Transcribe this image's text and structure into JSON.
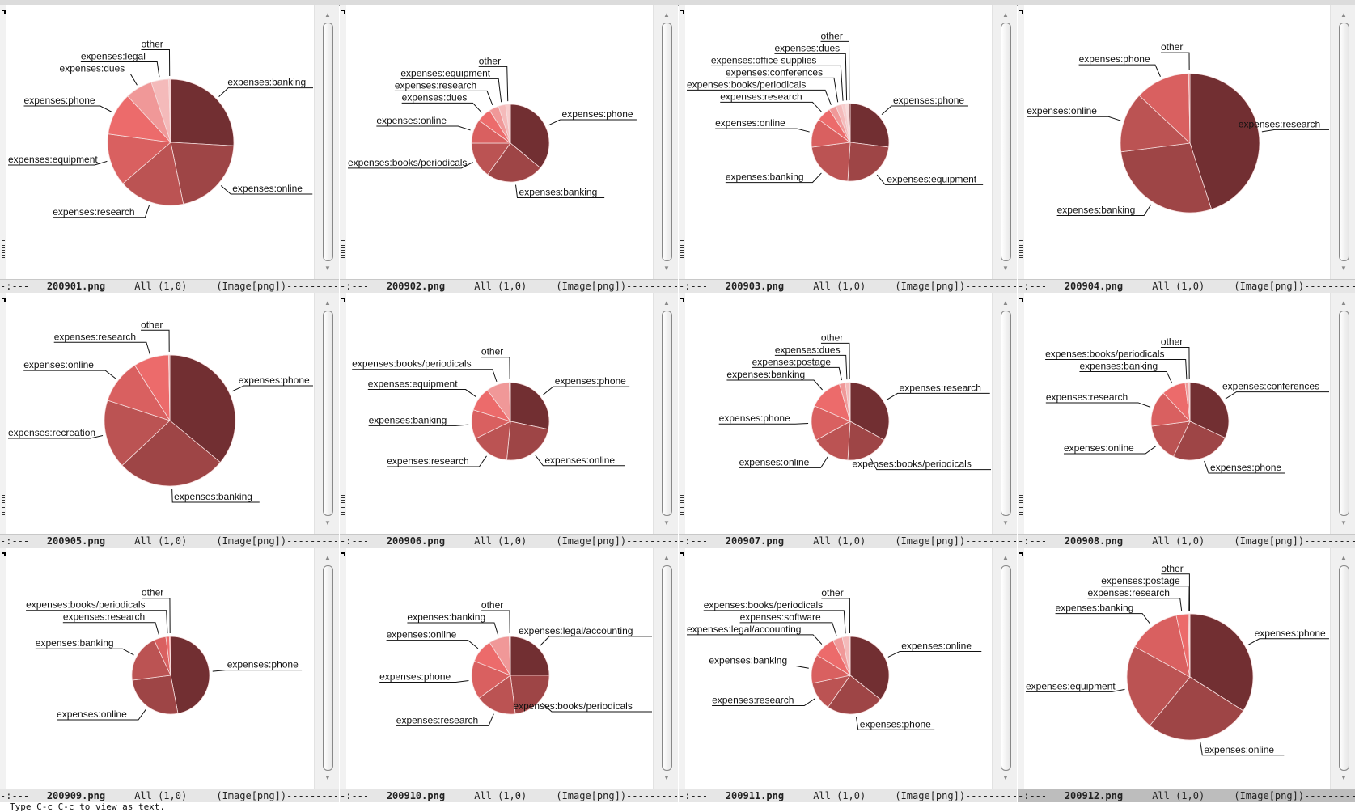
{
  "echo_area": "Type C-c C-c to view as text.",
  "colors": {
    "slices": [
      "#722f32",
      "#9e4546",
      "#bb5353",
      "#d96060",
      "#ec6b6b",
      "#f09898",
      "#f4baba",
      "#f7cccc",
      "#f9dada"
    ],
    "modeline": "#e6e6e6",
    "modeline_active": "#bdbdbd"
  },
  "windows": [
    {
      "buffer": "200901.png",
      "status": "-:---",
      "position": "All (1,0)",
      "mode": "(Image[png])",
      "active": false
    },
    {
      "buffer": "200902.png",
      "status": "-:---",
      "position": "All (1,0)",
      "mode": "(Image[png])",
      "active": false
    },
    {
      "buffer": "200903.png",
      "status": "-:---",
      "position": "All (1,0)",
      "mode": "(Image[png])",
      "active": false
    },
    {
      "buffer": "200904.png",
      "status": "-:---",
      "position": "All (1,0)",
      "mode": "(Image[png])",
      "active": false
    },
    {
      "buffer": "200905.png",
      "status": "-:---",
      "position": "All (1,0)",
      "mode": "(Image[png])",
      "active": false
    },
    {
      "buffer": "200906.png",
      "status": "-:---",
      "position": "All (1,0)",
      "mode": "(Image[png])",
      "active": false
    },
    {
      "buffer": "200907.png",
      "status": "-:---",
      "position": "All (1,0)",
      "mode": "(Image[png])",
      "active": false
    },
    {
      "buffer": "200908.png",
      "status": "-:---",
      "position": "All (1,0)",
      "mode": "(Image[png])",
      "active": false
    },
    {
      "buffer": "200909.png",
      "status": "-:---",
      "position": "All (1,0)",
      "mode": "(Image[png])",
      "active": false
    },
    {
      "buffer": "200910.png",
      "status": "-:---",
      "position": "All (1,0)",
      "mode": "(Image[png])",
      "active": false
    },
    {
      "buffer": "200911.png",
      "status": "-:---",
      "position": "All (1,0)",
      "mode": "(Image[png])",
      "active": false
    },
    {
      "buffer": "200912.png",
      "status": "-:---",
      "position": "All (1,0)",
      "mode": "(Image[png])",
      "active": true
    }
  ],
  "chart_data": [
    {
      "type": "pie",
      "slices": [
        [
          "expenses:banking",
          26
        ],
        [
          "expenses:online",
          21
        ],
        [
          "expenses:research",
          17
        ],
        [
          "expenses:equipment",
          13.5
        ],
        [
          "expenses:phone",
          11
        ],
        [
          "expenses:dues",
          7
        ],
        [
          "expenses:legal",
          4.5
        ],
        [
          "other",
          0.5
        ]
      ]
    },
    {
      "type": "pie",
      "slices": [
        [
          "expenses:phone",
          36
        ],
        [
          "expenses:banking",
          24
        ],
        [
          "expenses:books/periodicals",
          15
        ],
        [
          "expenses:online",
          10
        ],
        [
          "expenses:dues",
          6
        ],
        [
          "expenses:research",
          4
        ],
        [
          "expenses:equipment",
          3
        ],
        [
          "other",
          2
        ]
      ]
    },
    {
      "type": "pie",
      "slices": [
        [
          "expenses:phone",
          27
        ],
        [
          "expenses:equipment",
          24
        ],
        [
          "expenses:banking",
          22
        ],
        [
          "expenses:online",
          12
        ],
        [
          "expenses:research",
          6
        ],
        [
          "expenses:books/periodicals",
          3
        ],
        [
          "expenses:conferences",
          2.5
        ],
        [
          "expenses:office supplies",
          1.5
        ],
        [
          "expenses:dues",
          1.3
        ],
        [
          "other",
          0.7
        ]
      ]
    },
    {
      "type": "pie",
      "slices": [
        [
          "expenses:research",
          45
        ],
        [
          "expenses:banking",
          28
        ],
        [
          "expenses:online",
          14
        ],
        [
          "expenses:phone",
          12.7
        ],
        [
          "other",
          0.3
        ]
      ]
    },
    {
      "type": "pie",
      "slices": [
        [
          "expenses:phone",
          36
        ],
        [
          "expenses:banking",
          27
        ],
        [
          "expenses:recreation",
          17
        ],
        [
          "expenses:online",
          11
        ],
        [
          "expenses:research",
          8.7
        ],
        [
          "other",
          0.3
        ]
      ]
    },
    {
      "type": "pie",
      "slices": [
        [
          "expenses:phone",
          28
        ],
        [
          "expenses:online",
          23
        ],
        [
          "expenses:research",
          16
        ],
        [
          "expenses:banking",
          12
        ],
        [
          "expenses:equipment",
          10
        ],
        [
          "expenses:books/periodicals",
          9.5
        ],
        [
          "other",
          0.5
        ]
      ]
    },
    {
      "type": "pie",
      "slices": [
        [
          "expenses:research",
          33
        ],
        [
          "expenses:books/periodicals",
          18
        ],
        [
          "expenses:online",
          16
        ],
        [
          "expenses:phone",
          14.5
        ],
        [
          "expenses:banking",
          14
        ],
        [
          "expenses:postage",
          2.5
        ],
        [
          "expenses:dues",
          1.5
        ],
        [
          "other",
          0.5
        ]
      ]
    },
    {
      "type": "pie",
      "slices": [
        [
          "expenses:conferences",
          32
        ],
        [
          "expenses:phone",
          25
        ],
        [
          "expenses:online",
          16
        ],
        [
          "expenses:research",
          15
        ],
        [
          "expenses:banking",
          10
        ],
        [
          "expenses:books/periodicals",
          1.5
        ],
        [
          "other",
          0.5
        ]
      ]
    },
    {
      "type": "pie",
      "slices": [
        [
          "expenses:phone",
          47
        ],
        [
          "expenses:online",
          26
        ],
        [
          "expenses:banking",
          20
        ],
        [
          "expenses:research",
          5
        ],
        [
          "expenses:books/periodicals",
          1.5
        ],
        [
          "other",
          0.5
        ]
      ]
    },
    {
      "type": "pie",
      "slices": [
        [
          "expenses:legal/accounting",
          25
        ],
        [
          "expenses:books/periodicals",
          23
        ],
        [
          "expenses:research",
          17
        ],
        [
          "expenses:phone",
          16
        ],
        [
          "expenses:online",
          10
        ],
        [
          "expenses:banking",
          8.5
        ],
        [
          "other",
          0.5
        ]
      ]
    },
    {
      "type": "pie",
      "slices": [
        [
          "expenses:online",
          35.7
        ],
        [
          "expenses:phone",
          24
        ],
        [
          "expenses:research",
          12
        ],
        [
          "expenses:banking",
          12
        ],
        [
          "expenses:legal/accounting",
          9
        ],
        [
          "expenses:software",
          4
        ],
        [
          "expenses:books/periodicals",
          3
        ],
        [
          "other",
          0.3
        ]
      ]
    },
    {
      "type": "pie",
      "slices": [
        [
          "expenses:phone",
          34
        ],
        [
          "expenses:online",
          27
        ],
        [
          "expenses:equipment",
          22
        ],
        [
          "expenses:banking",
          13.5
        ],
        [
          "expenses:research",
          3
        ],
        [
          "expenses:postage",
          0.3
        ],
        [
          "other",
          0.2
        ]
      ]
    }
  ]
}
